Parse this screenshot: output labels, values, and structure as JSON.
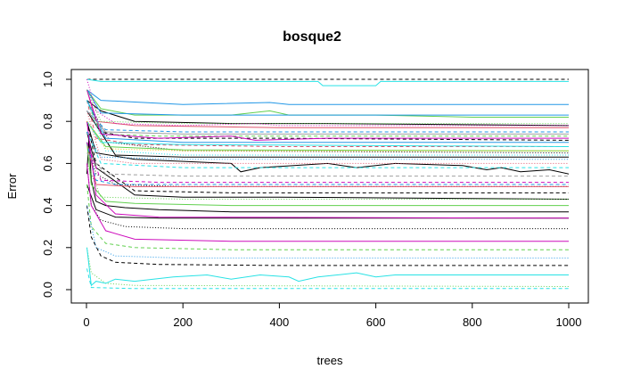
{
  "chart_data": {
    "type": "line",
    "title": "bosque2",
    "xlabel": "trees",
    "ylabel": "Error",
    "xlim": [
      0,
      1000
    ],
    "ylim": [
      0,
      1
    ],
    "x_ticks": [
      "0",
      "200",
      "400",
      "600",
      "800",
      "1000"
    ],
    "y_ticks": [
      "0.0",
      "0.2",
      "0.4",
      "0.6",
      "0.8",
      "1.0"
    ],
    "grid": false,
    "legend": "none",
    "series": [
      {
        "color": "#000000",
        "dash": "none",
        "points": [
          [
            1,
            0.55
          ],
          [
            5,
            0.72
          ],
          [
            10,
            0.52
          ],
          [
            20,
            0.42
          ],
          [
            40,
            0.4
          ],
          [
            80,
            0.39
          ],
          [
            150,
            0.38
          ],
          [
            300,
            0.37
          ],
          [
            600,
            0.37
          ],
          [
            1000,
            0.37
          ]
        ]
      },
      {
        "color": "#000000",
        "dash": "dashed",
        "points": [
          [
            1,
            0.4
          ],
          [
            10,
            0.25
          ],
          [
            30,
            0.16
          ],
          [
            60,
            0.13
          ],
          [
            150,
            0.12
          ],
          [
            400,
            0.115
          ],
          [
            1000,
            0.115
          ]
        ]
      },
      {
        "color": "#000000",
        "dash": "dotted",
        "points": [
          [
            1,
            0.6
          ],
          [
            10,
            0.4
          ],
          [
            30,
            0.33
          ],
          [
            80,
            0.3
          ],
          [
            200,
            0.29
          ],
          [
            1000,
            0.29
          ]
        ]
      },
      {
        "color": "#000000",
        "dash": "none",
        "points": [
          [
            1,
            0.8
          ],
          [
            20,
            0.65
          ],
          [
            100,
            0.62
          ],
          [
            300,
            0.6
          ],
          [
            320,
            0.56
          ],
          [
            360,
            0.58
          ],
          [
            500,
            0.6
          ],
          [
            560,
            0.58
          ],
          [
            640,
            0.6
          ],
          [
            780,
            0.59
          ],
          [
            830,
            0.57
          ],
          [
            860,
            0.58
          ],
          [
            900,
            0.56
          ],
          [
            960,
            0.57
          ],
          [
            1000,
            0.55
          ]
        ]
      },
      {
        "color": "#000000",
        "dash": "dashed",
        "points": [
          [
            1,
            0.9
          ],
          [
            30,
            0.75
          ],
          [
            100,
            0.72
          ],
          [
            400,
            0.72
          ],
          [
            1000,
            0.71
          ]
        ]
      },
      {
        "color": "#000000",
        "dash": "none",
        "points": [
          [
            1,
            0.9
          ],
          [
            30,
            0.85
          ],
          [
            100,
            0.8
          ],
          [
            300,
            0.79
          ],
          [
            500,
            0.79
          ],
          [
            1000,
            0.78
          ]
        ]
      },
      {
        "color": "#000000",
        "dash": "dotted",
        "points": [
          [
            1,
            0.7
          ],
          [
            20,
            0.55
          ],
          [
            60,
            0.5
          ],
          [
            200,
            0.49
          ],
          [
            600,
            0.49
          ],
          [
            1000,
            0.49
          ]
        ]
      },
      {
        "color": "#000000",
        "dash": "dashed",
        "points": [
          [
            1,
            0.8
          ],
          [
            20,
            0.6
          ],
          [
            100,
            0.47
          ],
          [
            300,
            0.46
          ],
          [
            1000,
            0.46
          ]
        ]
      },
      {
        "color": "#000000",
        "dash": "none",
        "points": [
          [
            1,
            0.75
          ],
          [
            20,
            0.58
          ],
          [
            100,
            0.45
          ],
          [
            200,
            0.44
          ],
          [
            400,
            0.44
          ],
          [
            1000,
            0.43
          ]
        ]
      },
      {
        "color": "#000000",
        "dash": "dashed",
        "points": [
          [
            1,
            1.0
          ],
          [
            1000,
            1.0
          ]
        ]
      },
      {
        "color": "#000000",
        "dash": "dotted",
        "points": [
          [
            1,
            0.9
          ],
          [
            50,
            0.7
          ],
          [
            200,
            0.66
          ],
          [
            1000,
            0.65
          ]
        ]
      },
      {
        "color": "#000000",
        "dash": "none",
        "points": [
          [
            1,
            0.85
          ],
          [
            60,
            0.64
          ],
          [
            200,
            0.63
          ],
          [
            1000,
            0.63
          ]
        ]
      },
      {
        "color": "#000000",
        "dash": "none",
        "points": [
          [
            1,
            0.5
          ],
          [
            20,
            0.38
          ],
          [
            60,
            0.345
          ],
          [
            150,
            0.34
          ],
          [
            1000,
            0.34
          ]
        ]
      },
      {
        "color": "#DF536B",
        "dash": "none",
        "points": [
          [
            1,
            0.95
          ],
          [
            20,
            0.8
          ],
          [
            100,
            0.78
          ],
          [
            400,
            0.77
          ],
          [
            1000,
            0.77
          ]
        ]
      },
      {
        "color": "#DF536B",
        "dash": "dashed",
        "points": [
          [
            1,
            0.9
          ],
          [
            20,
            0.72
          ],
          [
            100,
            0.69
          ],
          [
            400,
            0.68
          ],
          [
            1000,
            0.68
          ]
        ]
      },
      {
        "color": "#DF536B",
        "dash": "dotted",
        "points": [
          [
            1,
            0.85
          ],
          [
            30,
            0.62
          ],
          [
            100,
            0.6
          ],
          [
            1000,
            0.6
          ]
        ]
      },
      {
        "color": "#DF536B",
        "dash": "none",
        "points": [
          [
            1,
            0.7
          ],
          [
            20,
            0.5
          ],
          [
            100,
            0.49
          ],
          [
            1000,
            0.49
          ]
        ]
      },
      {
        "color": "#61D04F",
        "dash": "none",
        "points": [
          [
            1,
            0.7
          ],
          [
            10,
            0.5
          ],
          [
            40,
            0.42
          ],
          [
            100,
            0.41
          ],
          [
            300,
            0.4
          ],
          [
            1000,
            0.4
          ]
        ]
      },
      {
        "color": "#61D04F",
        "dash": "dashed",
        "points": [
          [
            1,
            0.5
          ],
          [
            10,
            0.3
          ],
          [
            40,
            0.22
          ],
          [
            100,
            0.2
          ],
          [
            300,
            0.19
          ],
          [
            1000,
            0.19
          ]
        ]
      },
      {
        "color": "#61D04F",
        "dash": "dotted",
        "points": [
          [
            1,
            0.2
          ],
          [
            10,
            0.08
          ],
          [
            40,
            0.03
          ],
          [
            100,
            0.02
          ],
          [
            1000,
            0.015
          ]
        ]
      },
      {
        "color": "#61D04F",
        "dash": "none",
        "points": [
          [
            1,
            0.95
          ],
          [
            30,
            0.86
          ],
          [
            100,
            0.83
          ],
          [
            300,
            0.83
          ],
          [
            380,
            0.85
          ],
          [
            420,
            0.83
          ],
          [
            600,
            0.83
          ],
          [
            800,
            0.82
          ],
          [
            1000,
            0.82
          ]
        ]
      },
      {
        "color": "#61D04F",
        "dash": "dashed",
        "points": [
          [
            1,
            0.9
          ],
          [
            30,
            0.74
          ],
          [
            150,
            0.73
          ],
          [
            1000,
            0.73
          ]
        ]
      },
      {
        "color": "#61D04F",
        "dash": "none",
        "points": [
          [
            1,
            0.8
          ],
          [
            40,
            0.68
          ],
          [
            200,
            0.665
          ],
          [
            1000,
            0.66
          ]
        ]
      },
      {
        "color": "#61D04F",
        "dash": "dotted",
        "points": [
          [
            1,
            0.6
          ],
          [
            30,
            0.44
          ],
          [
            200,
            0.43
          ],
          [
            1000,
            0.43
          ]
        ]
      },
      {
        "color": "#2297E6",
        "dash": "none",
        "points": [
          [
            1,
            0.95
          ],
          [
            30,
            0.9
          ],
          [
            200,
            0.88
          ],
          [
            380,
            0.89
          ],
          [
            420,
            0.88
          ],
          [
            1000,
            0.88
          ]
        ]
      },
      {
        "color": "#2297E6",
        "dash": "dashed",
        "points": [
          [
            1,
            0.7
          ],
          [
            20,
            0.52
          ],
          [
            60,
            0.5
          ],
          [
            1000,
            0.5
          ]
        ]
      },
      {
        "color": "#2297E6",
        "dash": "dotted",
        "points": [
          [
            1,
            0.4
          ],
          [
            20,
            0.2
          ],
          [
            60,
            0.16
          ],
          [
            200,
            0.15
          ],
          [
            1000,
            0.15
          ]
        ]
      },
      {
        "color": "#2297E6",
        "dash": "none",
        "points": [
          [
            1,
            0.9
          ],
          [
            40,
            0.72
          ],
          [
            200,
            0.7
          ],
          [
            1000,
            0.7
          ]
        ]
      },
      {
        "color": "#2297E6",
        "dash": "dashed",
        "points": [
          [
            1,
            0.85
          ],
          [
            40,
            0.76
          ],
          [
            200,
            0.75
          ],
          [
            1000,
            0.75
          ]
        ]
      },
      {
        "color": "#2297E6",
        "dash": "none",
        "points": [
          [
            1,
            0.95
          ],
          [
            30,
            0.84
          ],
          [
            200,
            0.83
          ],
          [
            1000,
            0.83
          ]
        ]
      },
      {
        "color": "#28E2E5",
        "dash": "none",
        "points": [
          [
            1,
            0.2
          ],
          [
            10,
            0.02
          ],
          [
            20,
            0.04
          ],
          [
            40,
            0.03
          ],
          [
            60,
            0.05
          ],
          [
            100,
            0.04
          ],
          [
            180,
            0.06
          ],
          [
            250,
            0.07
          ],
          [
            300,
            0.05
          ],
          [
            360,
            0.07
          ],
          [
            420,
            0.06
          ],
          [
            440,
            0.04
          ],
          [
            480,
            0.06
          ],
          [
            520,
            0.07
          ],
          [
            560,
            0.08
          ],
          [
            600,
            0.06
          ],
          [
            640,
            0.07
          ],
          [
            1000,
            0.07
          ]
        ]
      },
      {
        "color": "#28E2E5",
        "dash": "dashed",
        "points": [
          [
            1,
            0.1
          ],
          [
            10,
            0.01
          ],
          [
            100,
            0.005
          ],
          [
            1000,
            0.005
          ]
        ]
      },
      {
        "color": "#28E2E5",
        "dash": "none",
        "points": [
          [
            1,
            1.0
          ],
          [
            30,
            0.99
          ],
          [
            480,
            0.99
          ],
          [
            490,
            0.97
          ],
          [
            600,
            0.97
          ],
          [
            610,
            0.99
          ],
          [
            1000,
            0.99
          ]
        ]
      },
      {
        "color": "#28E2E5",
        "dash": "dotted",
        "points": [
          [
            1,
            0.9
          ],
          [
            40,
            0.66
          ],
          [
            200,
            0.64
          ],
          [
            1000,
            0.64
          ]
        ]
      },
      {
        "color": "#28E2E5",
        "dash": "none",
        "points": [
          [
            1,
            0.8
          ],
          [
            30,
            0.7
          ],
          [
            200,
            0.69
          ],
          [
            1000,
            0.68
          ]
        ]
      },
      {
        "color": "#28E2E5",
        "dash": "dashed",
        "points": [
          [
            1,
            0.75
          ],
          [
            30,
            0.6
          ],
          [
            200,
            0.58
          ],
          [
            1000,
            0.58
          ]
        ]
      },
      {
        "color": "#CD0BBC",
        "dash": "none",
        "points": [
          [
            1,
            0.6
          ],
          [
            10,
            0.4
          ],
          [
            40,
            0.28
          ],
          [
            100,
            0.24
          ],
          [
            300,
            0.23
          ],
          [
            1000,
            0.23
          ]
        ]
      },
      {
        "color": "#CD0BBC",
        "dash": "none",
        "points": [
          [
            1,
            0.8
          ],
          [
            20,
            0.45
          ],
          [
            60,
            0.36
          ],
          [
            150,
            0.345
          ],
          [
            1000,
            0.34
          ]
        ]
      },
      {
        "color": "#CD0BBC",
        "dash": "dotted",
        "points": [
          [
            1,
            1.0
          ],
          [
            20,
            0.85
          ],
          [
            60,
            0.79
          ],
          [
            200,
            0.78
          ],
          [
            350,
            0.79
          ],
          [
            400,
            0.78
          ],
          [
            1000,
            0.78
          ]
        ]
      },
      {
        "color": "#CD0BBC",
        "dash": "none",
        "points": [
          [
            1,
            0.95
          ],
          [
            30,
            0.74
          ],
          [
            150,
            0.72
          ],
          [
            300,
            0.73
          ],
          [
            350,
            0.71
          ],
          [
            500,
            0.72
          ],
          [
            1000,
            0.72
          ]
        ]
      },
      {
        "color": "#CD0BBC",
        "dash": "dashed",
        "points": [
          [
            1,
            0.7
          ],
          [
            30,
            0.52
          ],
          [
            150,
            0.51
          ],
          [
            1000,
            0.51
          ]
        ]
      },
      {
        "color": "#F5C710",
        "dash": "dotted",
        "points": [
          [
            1,
            0.8
          ],
          [
            40,
            0.67
          ],
          [
            200,
            0.66
          ],
          [
            1000,
            0.66
          ]
        ]
      },
      {
        "color": "#9E9E9E",
        "dash": "none",
        "points": [
          [
            1,
            0.85
          ],
          [
            40,
            0.75
          ],
          [
            200,
            0.74
          ],
          [
            1000,
            0.74
          ]
        ]
      },
      {
        "color": "#9E9E9E",
        "dash": "dashed",
        "points": [
          [
            1,
            0.65
          ],
          [
            40,
            0.55
          ],
          [
            200,
            0.54
          ],
          [
            1000,
            0.54
          ]
        ]
      },
      {
        "color": "#61D04F",
        "dash": "dotted",
        "points": [
          [
            1,
            0.95
          ],
          [
            30,
            0.8
          ],
          [
            200,
            0.79
          ],
          [
            1000,
            0.79
          ]
        ]
      },
      {
        "color": "#2297E6",
        "dash": "dotted",
        "points": [
          [
            1,
            0.75
          ],
          [
            30,
            0.63
          ],
          [
            200,
            0.62
          ],
          [
            1000,
            0.62
          ]
        ]
      }
    ]
  }
}
